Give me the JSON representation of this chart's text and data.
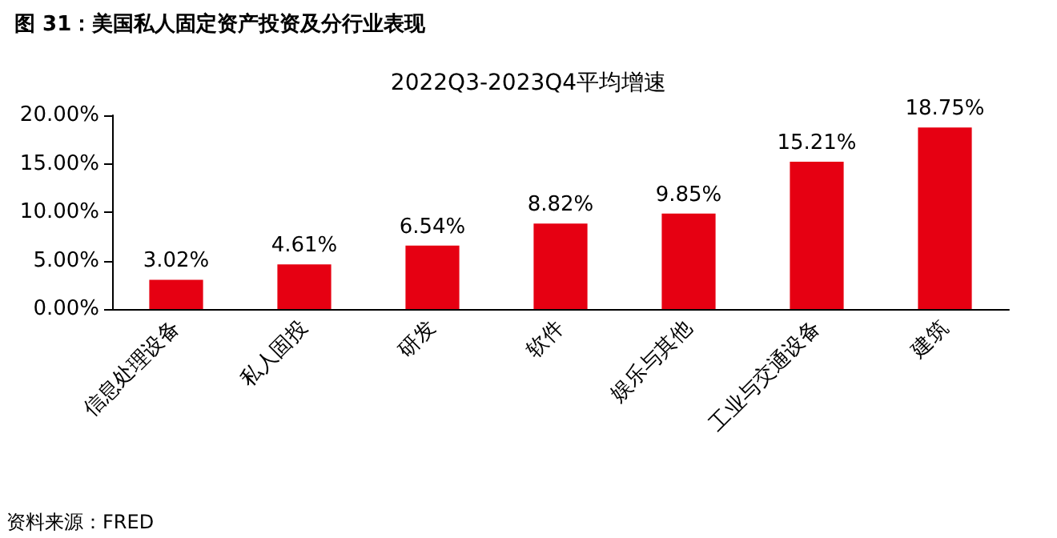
{
  "chart_data": {
    "type": "bar",
    "title": "图 31：美国私人固定资产投资及分行业表现",
    "subtitle": "2022Q3-2023Q4平均增速",
    "categories": [
      "信息处理设备",
      "私人固投",
      "研发",
      "软件",
      "娱乐与其他",
      "工业与交通设备",
      "建筑"
    ],
    "values": [
      3.02,
      4.61,
      6.54,
      8.82,
      9.85,
      15.21,
      18.75
    ],
    "value_labels": [
      "3.02%",
      "4.61%",
      "6.54%",
      "8.82%",
      "9.85%",
      "15.21%",
      "18.75%"
    ],
    "color": "#e60012",
    "ylim": [
      0,
      20
    ],
    "yticks": [
      {
        "value": 0,
        "label": "0.00%"
      },
      {
        "value": 5,
        "label": "5.00%"
      },
      {
        "value": 10,
        "label": "10.00%"
      },
      {
        "value": 15,
        "label": "15.00%"
      },
      {
        "value": 20,
        "label": "20.00%"
      }
    ],
    "grid": false,
    "annotations": [
      "资料来源：FRED"
    ]
  }
}
